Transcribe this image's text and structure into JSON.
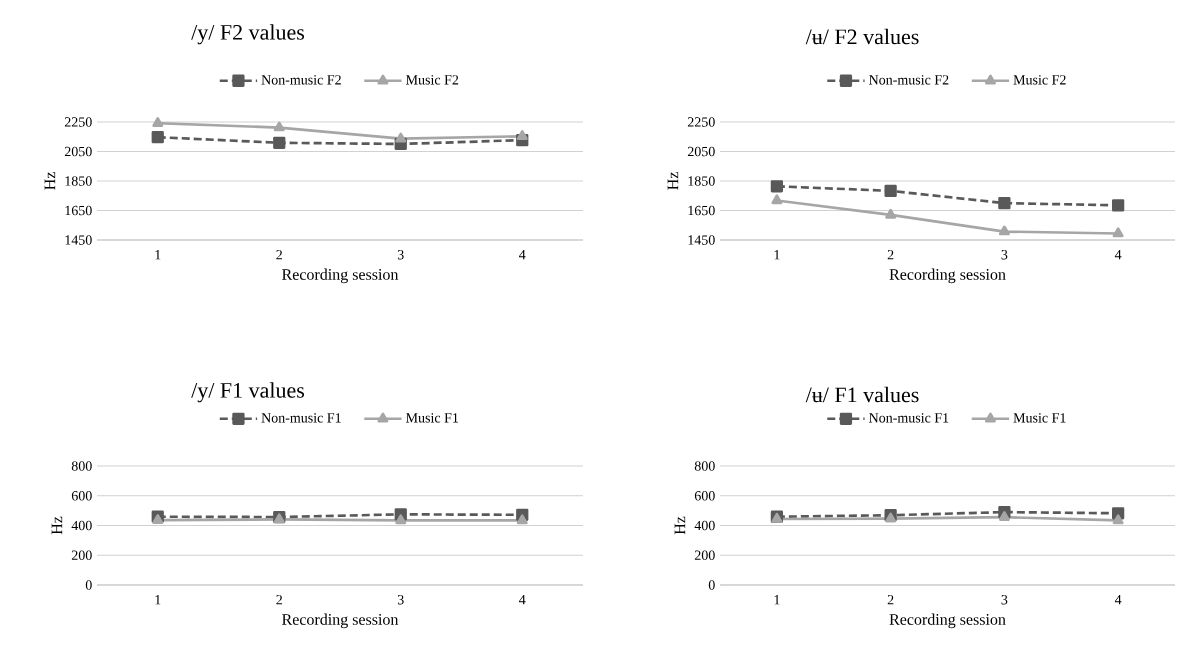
{
  "chart_data": [
    {
      "type": "line",
      "title": "/y/ F2 values",
      "xlabel": "Recording session",
      "ylabel": "Hz",
      "categories": [
        "1",
        "2",
        "3",
        "4"
      ],
      "ylim": [
        1450,
        2250
      ],
      "yticks": [
        1450,
        1650,
        1850,
        2050,
        2250
      ],
      "grid": "y",
      "legend": "top",
      "series": [
        {
          "name": "Non-music F2",
          "color": "#595959",
          "marker": "square",
          "line_style": "dashed",
          "values": [
            2147,
            2109,
            2101,
            2127
          ]
        },
        {
          "name": "Music F2",
          "color": "#a6a6a6",
          "marker": "triangle",
          "line_style": "solid",
          "values": [
            2242,
            2212,
            2137,
            2153
          ]
        }
      ]
    },
    {
      "type": "line",
      "title": "/ʉ/ F2 values",
      "xlabel": "Recording session",
      "ylabel": "Hz",
      "categories": [
        "1",
        "2",
        "3",
        "4"
      ],
      "ylim": [
        1450,
        2250
      ],
      "yticks": [
        1450,
        1650,
        1850,
        2050,
        2250
      ],
      "grid": "y",
      "legend": "top",
      "series": [
        {
          "name": "Non-music F2",
          "color": "#595959",
          "marker": "square",
          "line_style": "dashed",
          "values": [
            1814,
            1783,
            1700,
            1685
          ]
        },
        {
          "name": "Music F2",
          "color": "#a6a6a6",
          "marker": "triangle",
          "line_style": "solid",
          "values": [
            1718,
            1620,
            1507,
            1494
          ]
        }
      ]
    },
    {
      "type": "line",
      "title": "/y/ F1 values",
      "xlabel": "Recording session",
      "ylabel": "Hz",
      "categories": [
        "1",
        "2",
        "3",
        "4"
      ],
      "ylim": [
        0,
        800
      ],
      "yticks": [
        0,
        200,
        400,
        600,
        800
      ],
      "grid": "y",
      "legend": "top",
      "series": [
        {
          "name": "Non-music F1",
          "color": "#595959",
          "marker": "square",
          "line_style": "dashed",
          "values": [
            459,
            457,
            475,
            472
          ]
        },
        {
          "name": "Music F1",
          "color": "#a6a6a6",
          "marker": "triangle",
          "line_style": "solid",
          "values": [
            436,
            441,
            434,
            434
          ]
        }
      ]
    },
    {
      "type": "line",
      "title": "/ʉ/ F1 values",
      "xlabel": "Recording session",
      "ylabel": "Hz",
      "categories": [
        "1",
        "2",
        "3",
        "4"
      ],
      "ylim": [
        0,
        800
      ],
      "yticks": [
        0,
        200,
        400,
        600,
        800
      ],
      "grid": "y",
      "legend": "top",
      "series": [
        {
          "name": "Non-music F1",
          "color": "#595959",
          "marker": "square",
          "line_style": "dashed",
          "values": [
            459,
            469,
            490,
            482
          ]
        },
        {
          "name": "Music F1",
          "color": "#a6a6a6",
          "marker": "triangle",
          "line_style": "solid",
          "values": [
            444,
            446,
            456,
            434
          ]
        }
      ]
    }
  ]
}
